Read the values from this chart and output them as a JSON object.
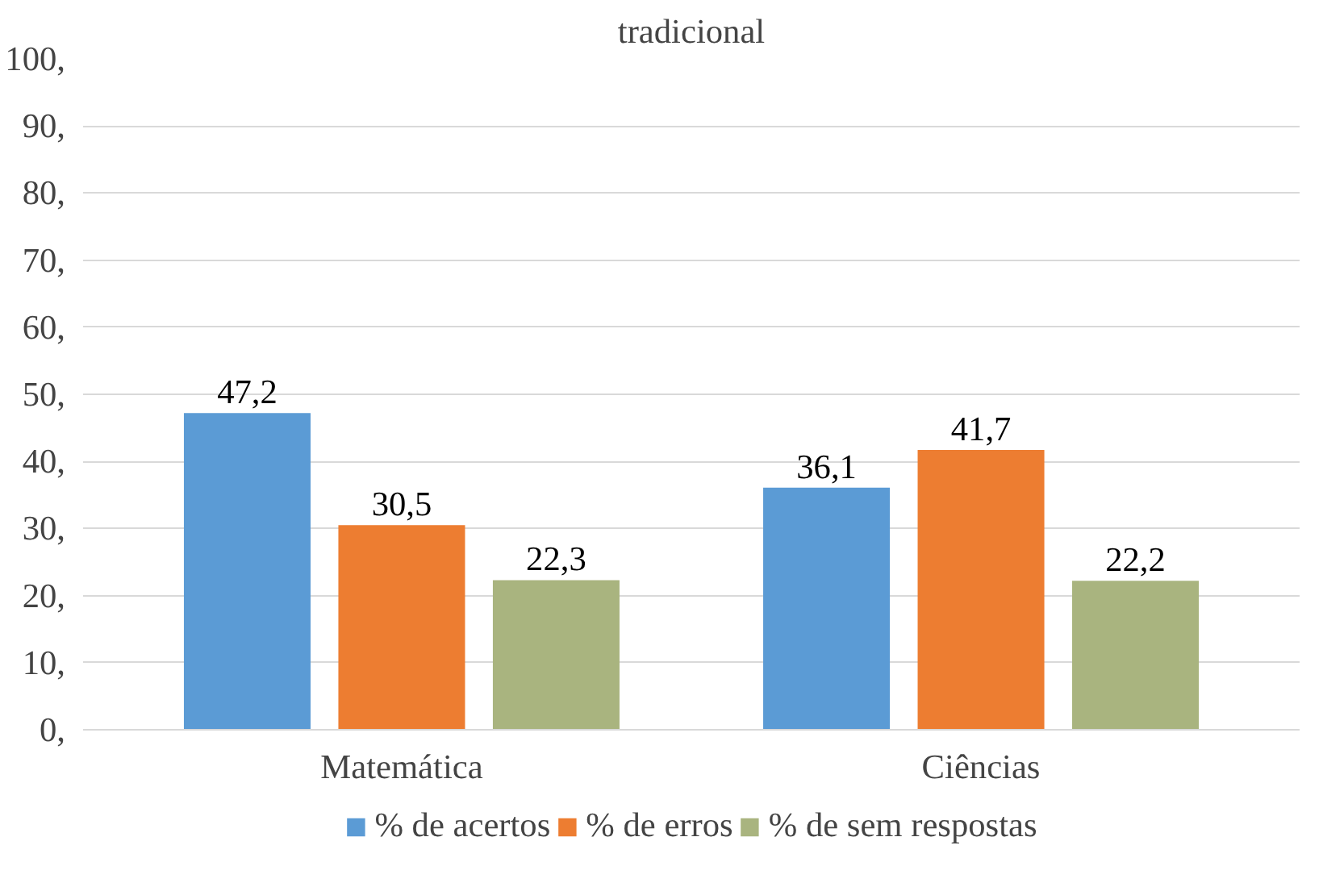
{
  "chart_data": {
    "type": "bar",
    "title": "tradicional",
    "categories": [
      "Matemática",
      "Ciências"
    ],
    "series": [
      {
        "name": "% de acertos",
        "color": "#5b9bd5",
        "values": [
          47.2,
          36.1
        ]
      },
      {
        "name": "% de erros",
        "color": "#ed7d31",
        "values": [
          30.5,
          41.7
        ]
      },
      {
        "name": "% de sem respostas",
        "color": "#a9b47f",
        "values": [
          22.3,
          22.2
        ]
      }
    ],
    "value_labels": [
      [
        "47,2",
        "36,1"
      ],
      [
        "30,5",
        "41,7"
      ],
      [
        "22,3",
        "22,2"
      ]
    ],
    "ylim": [
      0,
      100
    ],
    "yticks": [
      {
        "value": 0,
        "label": "0,"
      },
      {
        "value": 10,
        "label": "10,"
      },
      {
        "value": 20,
        "label": "20,"
      },
      {
        "value": 30,
        "label": "30,"
      },
      {
        "value": 40,
        "label": "40,"
      },
      {
        "value": 50,
        "label": "50,"
      },
      {
        "value": 60,
        "label": "60,"
      },
      {
        "value": 70,
        "label": "70,"
      },
      {
        "value": 80,
        "label": "80,"
      },
      {
        "value": 90,
        "label": "90,"
      },
      {
        "value": 100,
        "label": "100,"
      }
    ],
    "grid": "y",
    "legend": "bottom"
  }
}
